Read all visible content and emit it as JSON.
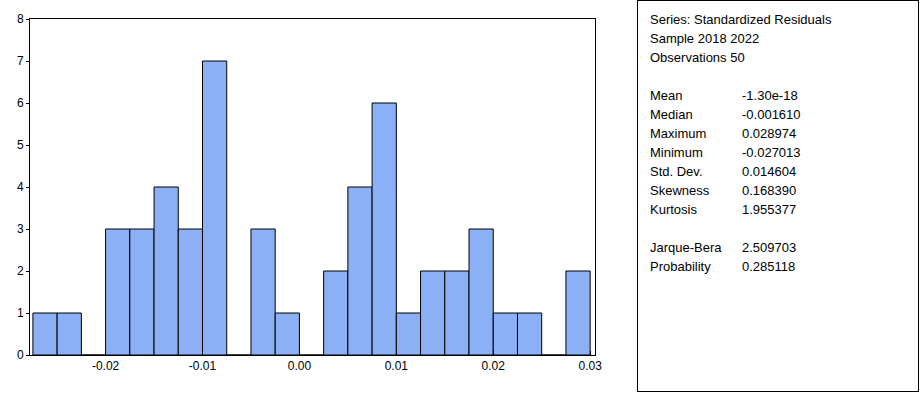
{
  "chart_data": {
    "type": "histogram",
    "bins": [
      -0.0275,
      -0.025,
      -0.0225,
      -0.02,
      -0.0175,
      -0.015,
      -0.0125,
      -0.01,
      -0.0075,
      -0.005,
      -0.0025,
      0,
      0.0025,
      0.005,
      0.0075,
      0.01,
      0.0125,
      0.015,
      0.0175,
      0.02,
      0.0225,
      0.025,
      0.0275,
      0.03
    ],
    "values": [
      1,
      1,
      0,
      3,
      3,
      4,
      3,
      7,
      0,
      3,
      1,
      0,
      2,
      4,
      6,
      1,
      2,
      2,
      3,
      1,
      1,
      0,
      2
    ],
    "color": "#8cb0f5",
    "xlim": [
      -0.0278,
      0.0305
    ],
    "xticks": [
      -0.02,
      -0.01,
      {
        "value": 0,
        "label": "0.00"
      },
      0.01,
      0.02,
      0.03
    ],
    "ylim": [
      0,
      8
    ],
    "yticks": [
      0,
      1,
      2,
      3,
      4,
      5,
      6,
      7,
      8
    ],
    "grid": false,
    "annotations": {
      "header": [
        "Series: Standardized Residuals",
        "Sample 2018 2022",
        "Observations 50"
      ],
      "stats": [
        [
          "Mean",
          "-1.30e-18"
        ],
        [
          "Median",
          "-0.001610"
        ],
        [
          "Maximum",
          "0.028974"
        ],
        [
          "Minimum",
          "-0.027013"
        ],
        [
          "Std. Dev.",
          "0.014604"
        ],
        [
          "Skewness",
          "0.168390"
        ],
        [
          "Kurtosis",
          "1.955377"
        ]
      ],
      "tests": [
        [
          "Jarque-Bera",
          "2.509703"
        ],
        [
          "Probability",
          "0.285118"
        ]
      ]
    }
  }
}
